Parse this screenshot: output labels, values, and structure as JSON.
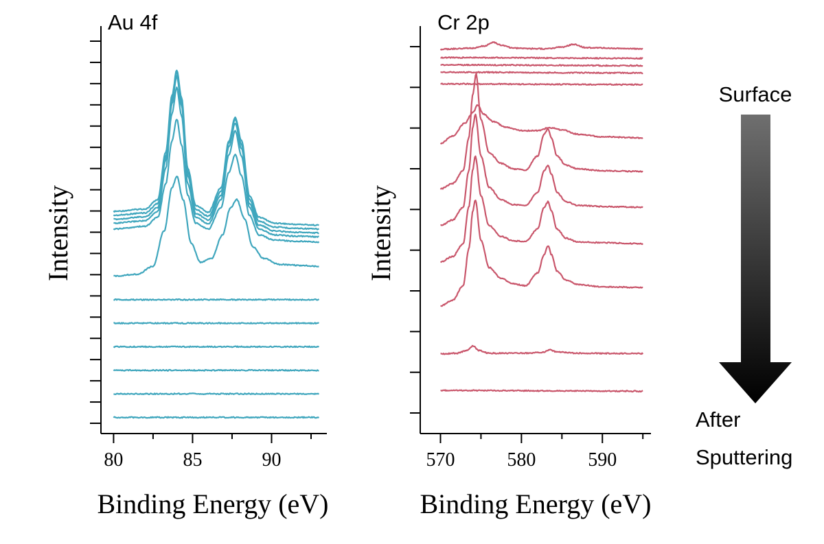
{
  "figure": {
    "arrow": {
      "top_label": "Surface",
      "bottom_label_line1": "After",
      "bottom_label_line2": "Sputtering"
    }
  },
  "chart_data": [
    {
      "type": "line",
      "title": "Au 4f",
      "xlabel": "Binding Energy (eV)",
      "ylabel": "Intensity",
      "xlim": [
        79.2,
        93.5
      ],
      "x_ticks": [
        80,
        85,
        90
      ],
      "ylim": [
        0,
        100
      ],
      "y_ticks_shown": false,
      "y_minor_tick_count": 19,
      "grid": false,
      "legend": "none",
      "color": "#3fa6bd",
      "series": [
        {
          "x": [
            80,
            82,
            82.8,
            83.3,
            83.7,
            84.0,
            84.3,
            84.7,
            85.2,
            86.0,
            86.8,
            87.3,
            87.7,
            88.1,
            88.6,
            89.2,
            90.2,
            91.5,
            93.0
          ],
          "y": [
            54.0,
            54.6,
            57.0,
            69.0,
            83.5,
            90.0,
            83.0,
            65.0,
            55.5,
            53.8,
            60.0,
            72.0,
            78.0,
            72.0,
            58.0,
            52.5,
            51.0,
            50.7,
            50.5
          ]
        },
        {
          "x": [
            80,
            82,
            82.8,
            83.3,
            83.7,
            84.0,
            84.3,
            84.7,
            85.2,
            86.0,
            86.8,
            87.3,
            87.7,
            88.1,
            88.6,
            89.2,
            90.2,
            91.5,
            93.0
          ],
          "y": [
            53.0,
            53.6,
            56.0,
            68.0,
            82.5,
            89.5,
            82.0,
            64.0,
            54.5,
            52.8,
            59.0,
            71.5,
            77.5,
            71.0,
            57.0,
            51.5,
            50.0,
            49.7,
            49.5
          ]
        },
        {
          "x": [
            80,
            82,
            82.8,
            83.3,
            83.7,
            84.0,
            84.3,
            84.7,
            85.2,
            86.0,
            86.8,
            87.3,
            87.7,
            88.1,
            88.6,
            89.2,
            90.2,
            91.5,
            93.0
          ],
          "y": [
            52.0,
            52.6,
            55.0,
            67.0,
            81.5,
            88.5,
            81.0,
            63.0,
            53.5,
            51.8,
            58.0,
            70.5,
            76.5,
            70.0,
            56.0,
            50.5,
            49.0,
            48.7,
            48.5
          ]
        },
        {
          "x": [
            80,
            82,
            82.8,
            83.3,
            83.7,
            84.0,
            84.3,
            84.7,
            85.2,
            86.0,
            86.8,
            87.3,
            87.7,
            88.1,
            88.6,
            89.2,
            90.2,
            91.5,
            93.0
          ],
          "y": [
            51.0,
            51.6,
            54.0,
            65.0,
            79.0,
            85.5,
            78.5,
            61.0,
            52.5,
            50.8,
            57.0,
            68.5,
            74.5,
            68.0,
            55.0,
            49.5,
            48.0,
            47.7,
            47.5
          ]
        },
        {
          "x": [
            80,
            82,
            82.8,
            83.3,
            83.7,
            84.0,
            84.3,
            84.7,
            85.2,
            86.0,
            86.8,
            87.3,
            87.7,
            88.1,
            88.6,
            89.2,
            90.2,
            91.5,
            93.0
          ],
          "y": [
            49.5,
            50.2,
            52.5,
            61.0,
            72.0,
            77.5,
            71.0,
            58.0,
            51.0,
            49.5,
            55.0,
            64.0,
            68.5,
            63.0,
            53.0,
            48.0,
            46.7,
            46.4,
            46.2
          ]
        },
        {
          "x": [
            80,
            81.5,
            82.5,
            83.2,
            83.7,
            84.0,
            84.4,
            84.9,
            85.5,
            86.2,
            86.9,
            87.4,
            87.8,
            88.3,
            88.8,
            89.5,
            90.5,
            92.0,
            93.0
          ],
          "y": [
            37.5,
            38.0,
            40.0,
            49.0,
            60.0,
            63.0,
            57.0,
            46.0,
            41.0,
            42.0,
            48.0,
            55.0,
            57.0,
            52.0,
            45.0,
            42.0,
            40.5,
            40.2,
            40.0
          ]
        },
        {
          "x": [
            80,
            93
          ],
          "y": [
            31.5,
            31.5
          ]
        },
        {
          "x": [
            80,
            93
          ],
          "y": [
            25.5,
            25.5
          ]
        },
        {
          "x": [
            80,
            93
          ],
          "y": [
            19.5,
            19.5
          ]
        },
        {
          "x": [
            80,
            93
          ],
          "y": [
            13.5,
            13.5
          ]
        },
        {
          "x": [
            80,
            93
          ],
          "y": [
            7.5,
            7.5
          ]
        },
        {
          "x": [
            80,
            93
          ],
          "y": [
            1.5,
            1.5
          ]
        }
      ]
    },
    {
      "type": "line",
      "title": "Cr 2p",
      "xlabel": "Binding Energy (eV)",
      "ylabel": "Intensity",
      "xlim": [
        567.5,
        596
      ],
      "x_ticks": [
        570,
        580,
        590
      ],
      "ylim": [
        0,
        100
      ],
      "y_ticks_shown": false,
      "y_minor_tick_count": 10,
      "grid": false,
      "legend": "none",
      "color": "#c9566b",
      "series": [
        {
          "x": [
            570,
            574,
            575.5,
            576.5,
            577.5,
            579,
            583,
            585,
            586.5,
            588,
            595
          ],
          "y": [
            99.3,
            99.6,
            100.2,
            101.2,
            100.4,
            99.6,
            99.4,
            99.9,
            100.6,
            99.7,
            99.4
          ]
        },
        {
          "x": [
            570,
            595
          ],
          "y": [
            97.0,
            96.8
          ]
        },
        {
          "x": [
            570,
            595
          ],
          "y": [
            95.0,
            94.8
          ]
        },
        {
          "x": [
            570,
            595
          ],
          "y": [
            93.0,
            92.8
          ]
        },
        {
          "x": [
            570,
            595
          ],
          "y": [
            89.8,
            89.6
          ]
        },
        {
          "x": [
            570,
            571.5,
            573,
            574.0,
            574.6,
            575.3,
            576.5,
            578,
            580,
            582,
            583.5,
            585,
            587,
            590,
            595
          ],
          "y": [
            73.5,
            75.5,
            79.0,
            82.0,
            84.0,
            81.5,
            79.5,
            78.0,
            77.0,
            77.0,
            77.8,
            77.2,
            76.0,
            75.3,
            75.0
          ]
        },
        {
          "x": [
            570,
            571.5,
            572.8,
            573.5,
            574.0,
            574.4,
            575.0,
            576.0,
            577.5,
            579,
            580.5,
            582,
            582.8,
            583.3,
            583.7,
            584.4,
            585.5,
            587,
            590,
            595
          ],
          "y": [
            61.0,
            62.5,
            66.0,
            75.0,
            87.0,
            92.5,
            80.0,
            71.0,
            68.0,
            66.5,
            66.2,
            70.0,
            76.0,
            77.5,
            75.0,
            70.0,
            67.5,
            66.5,
            66.0,
            65.8
          ]
        },
        {
          "x": [
            570,
            571.5,
            572.8,
            573.5,
            574.0,
            574.3,
            575.0,
            576.0,
            577.5,
            579,
            580.5,
            582,
            582.8,
            583.3,
            583.7,
            584.4,
            585.5,
            587,
            590,
            595
          ],
          "y": [
            51.0,
            52.5,
            56.0,
            66.0,
            78.0,
            81.5,
            70.0,
            61.5,
            58.0,
            56.7,
            56.5,
            60.0,
            66.0,
            67.5,
            65.0,
            60.0,
            57.5,
            56.5,
            56.2,
            56.0
          ]
        },
        {
          "x": [
            570,
            571.5,
            572.8,
            573.5,
            574.0,
            574.3,
            575.0,
            576.0,
            577.5,
            579,
            580.5,
            582,
            582.8,
            583.3,
            583.7,
            584.4,
            585.5,
            587,
            590,
            595
          ],
          "y": [
            41.0,
            42.5,
            46.0,
            56.0,
            66.5,
            70.0,
            59.0,
            51.0,
            48.0,
            46.8,
            46.6,
            50.0,
            56.0,
            57.5,
            55.0,
            50.0,
            47.5,
            46.5,
            46.3,
            46.0
          ]
        },
        {
          "x": [
            570,
            571.5,
            572.8,
            573.5,
            574.0,
            574.3,
            575.0,
            576.0,
            577.5,
            579,
            580.5,
            582,
            582.8,
            583.3,
            583.7,
            584.4,
            585.5,
            587,
            590,
            595
          ],
          "y": [
            29.0,
            30.5,
            34.5,
            44.5,
            55.0,
            58.0,
            47.0,
            39.5,
            36.5,
            35.0,
            34.5,
            38.0,
            43.0,
            45.5,
            43.0,
            38.5,
            36.0,
            34.8,
            34.2,
            34.0
          ]
        },
        {
          "x": [
            570,
            572,
            573.3,
            574.0,
            574.7,
            576,
            580,
            582.5,
            583.5,
            584.5,
            587,
            595
          ],
          "y": [
            15.8,
            16.0,
            16.8,
            18.0,
            16.8,
            16.0,
            16.0,
            16.2,
            16.9,
            16.3,
            16.0,
            15.9
          ]
        },
        {
          "x": [
            570,
            595
          ],
          "y": [
            5.8,
            5.6
          ]
        }
      ]
    }
  ]
}
